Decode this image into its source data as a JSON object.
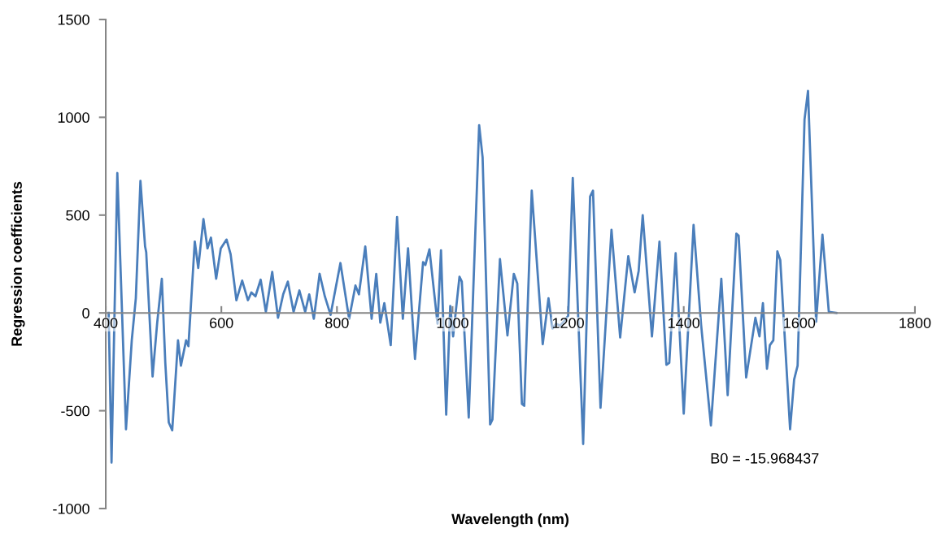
{
  "chart_data": {
    "type": "line",
    "xlabel": "Wavelength (nm)",
    "ylabel": "Regression coefficients",
    "xlim": [
      400,
      1800
    ],
    "xticks": [
      400,
      600,
      800,
      1000,
      1200,
      1400,
      1600,
      1800
    ],
    "ylim": [
      -1000,
      1500
    ],
    "yticks": [
      -1000,
      -500,
      0,
      500,
      1000,
      1500
    ],
    "grid": false,
    "legend": false,
    "marker": "none",
    "line_style": "solid",
    "annotations": [
      "B0 = -15.968437"
    ],
    "series": [
      {
        "color": "#4a7ebb",
        "x": [
          405,
          410,
          420,
          435,
          445,
          452,
          460,
          468,
          470,
          481,
          489,
          497,
          503,
          509,
          515,
          525,
          530,
          539,
          543,
          554,
          560,
          569,
          576,
          582,
          591,
          599,
          609,
          616,
          626,
          636,
          646,
          652,
          659,
          668,
          677,
          688,
          698,
          707,
          715,
          725,
          735,
          745,
          752,
          760,
          770,
          779,
          789,
          806,
          821,
          832,
          838,
          849,
          860,
          868,
          875,
          882,
          893,
          904,
          914,
          923,
          935,
          949,
          953,
          960,
          974,
          980,
          989,
          996,
          1001,
          1012,
          1016,
          1028,
          1046,
          1052,
          1065,
          1069,
          1082,
          1095,
          1106,
          1112,
          1120,
          1124,
          1137,
          1156,
          1166,
          1173,
          1179,
          1186,
          1195,
          1200,
          1208,
          1226,
          1238,
          1243,
          1256,
          1275,
          1290,
          1304,
          1315,
          1322,
          1329,
          1345,
          1358,
          1370,
          1375,
          1386,
          1400,
          1417,
          1430,
          1447,
          1465,
          1476,
          1491,
          1495,
          1508,
          1524,
          1531,
          1537,
          1544,
          1549,
          1555,
          1562,
          1567,
          1584,
          1591,
          1597,
          1609,
          1615,
          1629,
          1640,
          1651,
          1664
        ],
        "values": [
          0,
          -765,
          715,
          -595,
          -140,
          75,
          675,
          340,
          310,
          -325,
          -50,
          175,
          -255,
          -560,
          -600,
          -140,
          -270,
          -140,
          -170,
          365,
          230,
          480,
          330,
          385,
          175,
          330,
          375,
          300,
          65,
          165,
          65,
          105,
          85,
          170,
          5,
          210,
          -25,
          95,
          160,
          5,
          115,
          5,
          95,
          -30,
          200,
          85,
          -10,
          255,
          -30,
          140,
          95,
          340,
          -30,
          200,
          -50,
          50,
          -165,
          490,
          -30,
          330,
          -235,
          260,
          245,
          325,
          -55,
          320,
          -520,
          35,
          -120,
          185,
          160,
          -535,
          960,
          795,
          -570,
          -545,
          275,
          -115,
          200,
          150,
          -465,
          -475,
          625,
          -160,
          75,
          -80,
          -55,
          -65,
          -35,
          -15,
          690,
          -670,
          595,
          625,
          -485,
          425,
          -125,
          290,
          105,
          215,
          500,
          -120,
          365,
          -265,
          -255,
          305,
          -515,
          450,
          -60,
          -575,
          175,
          -420,
          405,
          395,
          -330,
          -25,
          -120,
          50,
          -285,
          -165,
          -140,
          315,
          270,
          -595,
          -340,
          -270,
          990,
          1135,
          -45,
          400,
          5,
          0
        ]
      }
    ]
  }
}
